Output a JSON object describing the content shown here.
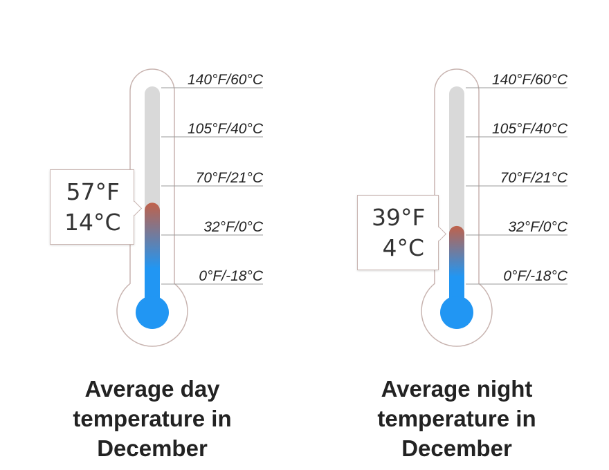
{
  "chart_data": [
    {
      "type": "thermometer",
      "title": "Average day temperature in December",
      "value_f": 57,
      "value_c": 14,
      "value_label_f": "57°F",
      "value_label_c": "14°C",
      "scale_f": [
        140,
        105,
        70,
        32,
        0
      ],
      "scale_c": [
        60,
        40,
        21,
        0,
        -18
      ],
      "tick_labels": [
        "140°F/60°C",
        "105°F/40°C",
        "70°F/21°C",
        "32°F/0°C",
        "0°F/-18°C"
      ]
    },
    {
      "type": "thermometer",
      "title": "Average night temperature in December",
      "value_f": 39,
      "value_c": 4,
      "value_label_f": "39°F",
      "value_label_c": "4°C",
      "scale_f": [
        140,
        105,
        70,
        32,
        0
      ],
      "scale_c": [
        60,
        40,
        21,
        0,
        -18
      ],
      "tick_labels": [
        "140°F/60°C",
        "105°F/40°C",
        "70°F/21°C",
        "32°F/0°C",
        "0°F/-18°C"
      ]
    }
  ],
  "colors": {
    "outline": "#c8b4b0",
    "tube": "#d9d9d9",
    "cold": "#2196f3",
    "warm": "#c0614a",
    "tick_line": "#999999"
  }
}
